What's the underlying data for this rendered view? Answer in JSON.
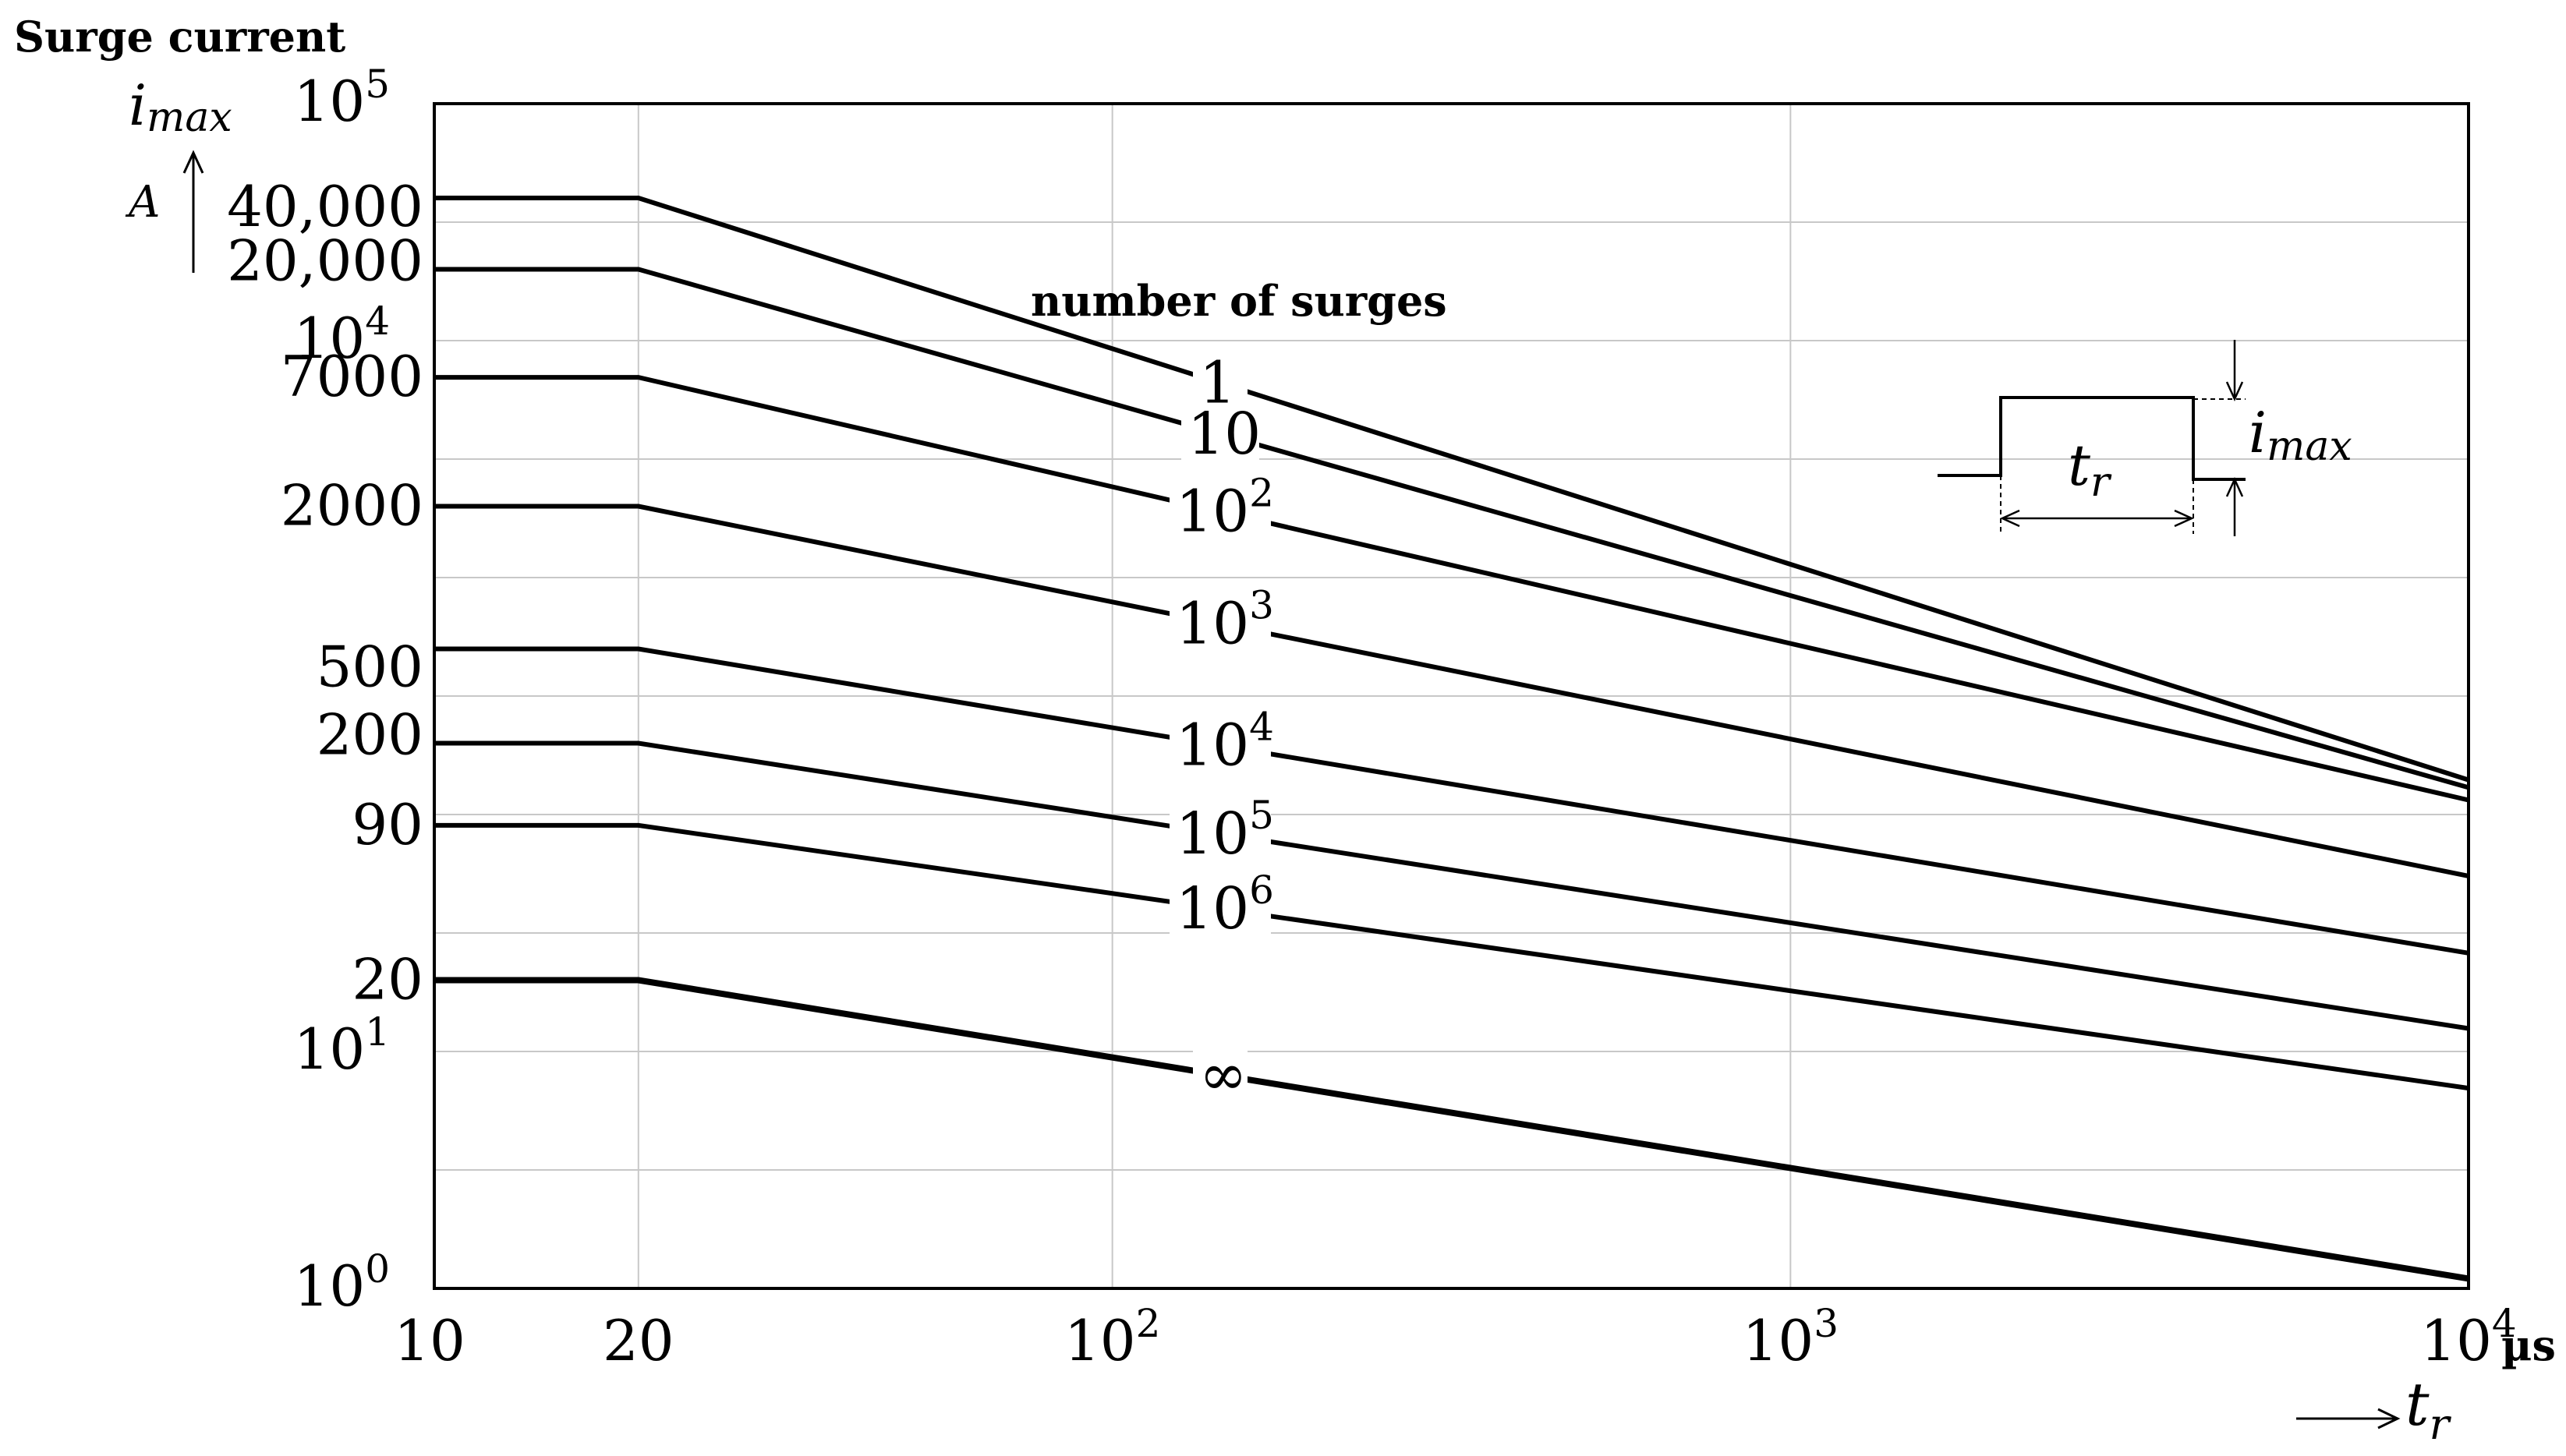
{
  "chart_data": {
    "type": "line",
    "title": "Surge current",
    "ylabel": "i",
    "ylabel_subscript": "max",
    "yunit": "A",
    "xlabel": "t",
    "xlabel_subscript": "r",
    "xunit": "µs",
    "x_scale": "log",
    "y_scale": "log",
    "xlim": [
      10,
      10000
    ],
    "ylim": [
      1,
      100000
    ],
    "grid": true,
    "x_ticks": [
      {
        "value": 10,
        "base": "10",
        "exp": ""
      },
      {
        "value": 20,
        "base": "20",
        "exp": ""
      },
      {
        "value": 100,
        "base": "10",
        "exp": "2"
      },
      {
        "value": 1000,
        "base": "10",
        "exp": "3"
      },
      {
        "value": 10000,
        "base": "10",
        "exp": "4"
      }
    ],
    "y_ticks": [
      {
        "value": 100000,
        "base": "10",
        "exp": "5"
      },
      {
        "value": 10000,
        "base": "10",
        "exp": "4"
      },
      {
        "value": 10,
        "base": "10",
        "exp": "1"
      },
      {
        "value": 1,
        "base": "10",
        "exp": "0"
      }
    ],
    "y_value_labels": [
      {
        "value": 40000,
        "text": "40,000"
      },
      {
        "value": 20000,
        "text": "20,000"
      },
      {
        "value": 7000,
        "text": "7000"
      },
      {
        "value": 2000,
        "text": "2000"
      },
      {
        "value": 500,
        "text": "500"
      },
      {
        "value": 200,
        "text": "200"
      },
      {
        "value": 90,
        "text": "90"
      },
      {
        "value": 20,
        "text": "20"
      }
    ],
    "series_annotation": "number of surges",
    "series": [
      {
        "label_base": "1",
        "label_exp": "",
        "points": [
          [
            10,
            40000
          ],
          [
            20,
            40000
          ],
          [
            10000,
            140
          ]
        ]
      },
      {
        "label_base": "10",
        "label_exp": "",
        "points": [
          [
            10,
            20000
          ],
          [
            20,
            20000
          ],
          [
            10000,
            130
          ]
        ]
      },
      {
        "label_base": "10",
        "label_exp": "2",
        "points": [
          [
            10,
            7000
          ],
          [
            20,
            7000
          ],
          [
            10000,
            115
          ]
        ]
      },
      {
        "label_base": "10",
        "label_exp": "3",
        "points": [
          [
            10,
            2000
          ],
          [
            20,
            2000
          ],
          [
            10000,
            55
          ]
        ]
      },
      {
        "label_base": "10",
        "label_exp": "4",
        "points": [
          [
            10,
            500
          ],
          [
            20,
            500
          ],
          [
            10000,
            26
          ]
        ]
      },
      {
        "label_base": "10",
        "label_exp": "5",
        "points": [
          [
            10,
            200
          ],
          [
            20,
            200
          ],
          [
            10000,
            12.5
          ]
        ]
      },
      {
        "label_base": "10",
        "label_exp": "6",
        "points": [
          [
            10,
            90
          ],
          [
            20,
            90
          ],
          [
            10000,
            7
          ]
        ]
      },
      {
        "label_base": "∞",
        "label_exp": "",
        "points": [
          [
            10,
            20
          ],
          [
            20,
            20
          ],
          [
            10000,
            1.1
          ]
        ]
      }
    ],
    "inset": {
      "pulse_width_label": "t",
      "pulse_width_subscript": "r",
      "amplitude_label": "i",
      "amplitude_subscript": "max"
    }
  }
}
